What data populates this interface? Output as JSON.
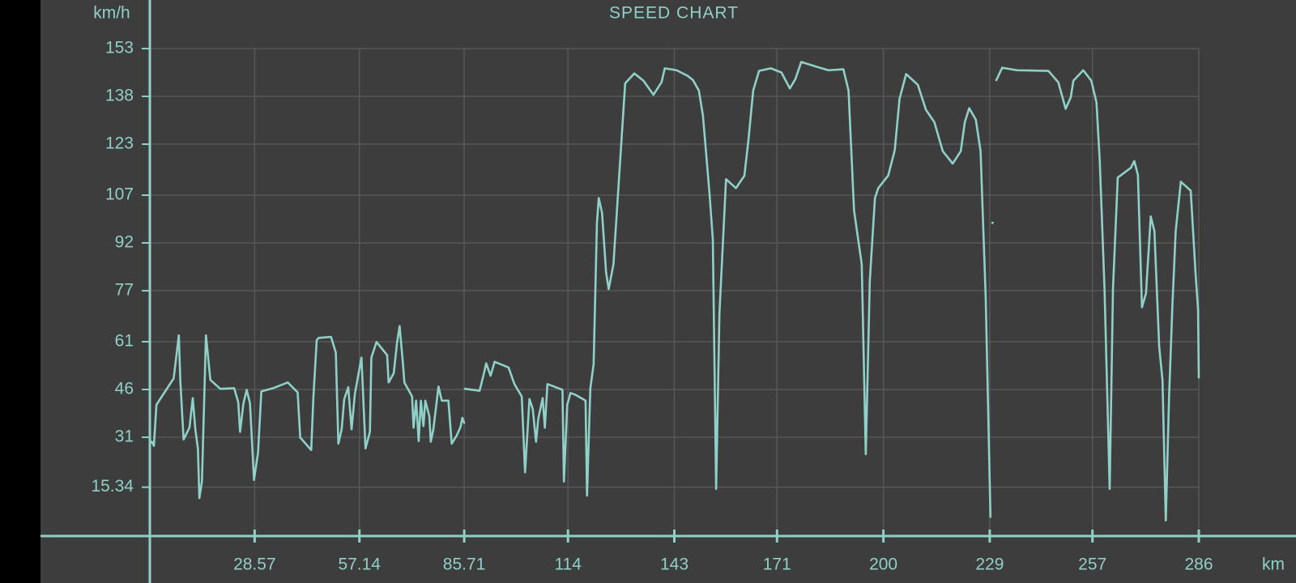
{
  "chart_data": {
    "type": "line",
    "title": "SPEED CHART",
    "y_label": "km/h",
    "x_label": "km",
    "x": [
      0.5,
      1.1,
      1.8,
      6.5,
      7.9,
      8.3,
      9.2,
      10.8,
      11.7,
      12.4,
      13.1,
      13.5,
      14.2,
      15.3,
      16.5,
      19.2,
      23.0,
      24.1,
      24.6,
      25.5,
      26.4,
      27.3,
      28.4,
      29.5,
      30.4,
      33.6,
      37.6,
      40.3,
      41.0,
      44.0,
      44.6,
      45.5,
      46.0,
      49.4,
      50.7,
      51.4,
      52.3,
      53.0,
      54.1,
      55.0,
      55.9,
      57.7,
      58.8,
      60.0,
      60.4,
      61.8,
      64.7,
      65.1,
      66.5,
      67.4,
      68.1,
      69.0,
      69.4,
      71.5,
      71.9,
      72.6,
      73.3,
      73.9,
      74.6,
      75.1,
      76.2,
      76.6,
      77.3,
      78.7,
      79.6,
      81.4,
      82.3,
      83.6,
      84.7,
      85.2,
      85.7,
      null,
      85.9,
      89.9,
      91.1,
      91.7,
      92.9,
      94.0,
      97.8,
      99.4,
      101.4,
      102.3,
      103.5,
      104.4,
      105.3,
      105.9,
      107.1,
      107.7,
      108.4,
      112.5,
      112.9,
      113.8,
      114.7,
      116.1,
      118.8,
      119.2,
      120.1,
      121.0,
      121.9,
      122.4,
      123.3,
      124.4,
      125.1,
      126.4,
      129.6,
      132.1,
      134.6,
      137.3,
      139.5,
      140.4,
      143.6,
      146.7,
      148.1,
      149.7,
      150.8,
      152.6,
      153.5,
      154.4,
      155.3,
      157.1,
      159.8,
      162.1,
      163.2,
      164.5,
      166.1,
      169.3,
      172.2,
      174.5,
      176.0,
      177.6,
      181.2,
      185.0,
      189.1,
      190.5,
      192.0,
      194.1,
      195.2,
      196.3,
      197.7,
      198.6,
      201.3,
      203.1,
      204.4,
      206.2,
      209.4,
      211.6,
      213.9,
      216.2,
      218.9,
      221.1,
      222.2,
      223.4,
      225.2,
      226.5,
      227.9,
      229.2,
      null,
      229.7,
      null,
      230.8,
      232.4,
      236.4,
      245.0,
      247.7,
      249.7,
      251.1,
      251.8,
      254.5,
      256.7,
      258.1,
      259.0,
      260.3,
      261.7,
      262.6,
      263.9,
      267.5,
      268.4,
      269.4,
      270.5,
      271.6,
      272.9,
      273.9,
      275.2,
      276.1,
      277.0,
      277.9,
      278.8,
      279.7,
      281.1,
      283.8,
      285.1,
      285.8,
      286.0
    ],
    "series": [
      {
        "name": "speed",
        "color": "#8fd0c8",
        "values": [
          29.6,
          28.3,
          41.2,
          49.5,
          63.0,
          49.0,
          30.3,
          34.0,
          43.3,
          33.5,
          27.5,
          11.9,
          17.1,
          63.0,
          49.0,
          46.2,
          46.4,
          42.0,
          32.7,
          41.5,
          45.9,
          41.7,
          17.6,
          26.2,
          45.4,
          46.4,
          48.2,
          45.1,
          30.9,
          27.0,
          43.8,
          61.5,
          62.2,
          62.5,
          57.6,
          29.0,
          33.5,
          43.0,
          46.7,
          33.5,
          44.6,
          56.0,
          27.5,
          32.7,
          56.0,
          60.9,
          56.8,
          48.2,
          51.1,
          60.7,
          65.9,
          54.2,
          48.2,
          43.8,
          34.0,
          42.5,
          29.8,
          42.5,
          34.5,
          42.5,
          37.6,
          29.6,
          33.5,
          46.9,
          42.5,
          42.5,
          29.0,
          31.4,
          34.2,
          37.1,
          35.5,
          null,
          46.2,
          45.6,
          51.1,
          54.2,
          50.3,
          54.7,
          52.9,
          47.7,
          43.8,
          20.0,
          43.0,
          39.9,
          29.6,
          36.8,
          43.3,
          34.0,
          47.7,
          45.9,
          17.1,
          41.2,
          44.9,
          44.3,
          42.5,
          12.7,
          46.4,
          53.9,
          98.3,
          106.1,
          101.4,
          82.7,
          77.5,
          85.3,
          142.1,
          145.2,
          142.9,
          138.5,
          142.4,
          146.8,
          146.2,
          144.4,
          143.1,
          139.8,
          132.0,
          107.4,
          93.1,
          14.8,
          69.8,
          112.0,
          109.2,
          113.1,
          124.2,
          139.8,
          146.0,
          146.8,
          145.5,
          140.5,
          143.4,
          148.8,
          147.5,
          146.2,
          146.5,
          139.8,
          102.2,
          85.3,
          25.7,
          80.1,
          106.1,
          109.2,
          113.1,
          121.1,
          137.2,
          145.0,
          141.6,
          133.8,
          129.9,
          120.8,
          116.9,
          120.8,
          129.9,
          134.3,
          130.7,
          120.8,
          74.9,
          6.0,
          null,
          98.3,
          null,
          143.1,
          147.0,
          146.2,
          146.0,
          142.4,
          134.1,
          137.7,
          142.9,
          146.2,
          142.9,
          136.1,
          117.7,
          77.5,
          14.8,
          77.5,
          112.5,
          115.6,
          117.7,
          113.3,
          71.8,
          76.2,
          100.3,
          95.7,
          59.4,
          49.0,
          4.9,
          43.8,
          72.3,
          95.7,
          111.2,
          108.4,
          82.7,
          71.1,
          49.8
        ]
      }
    ],
    "xlim": [
      0,
      286
    ],
    "xticks": [
      28.57,
      57.14,
      85.71,
      114,
      143,
      171,
      200,
      229,
      257,
      286
    ],
    "ylim": [
      0,
      153
    ],
    "yticks": [
      15.34,
      31,
      46,
      61,
      77,
      92,
      107,
      123,
      138,
      153
    ],
    "grid": true
  }
}
